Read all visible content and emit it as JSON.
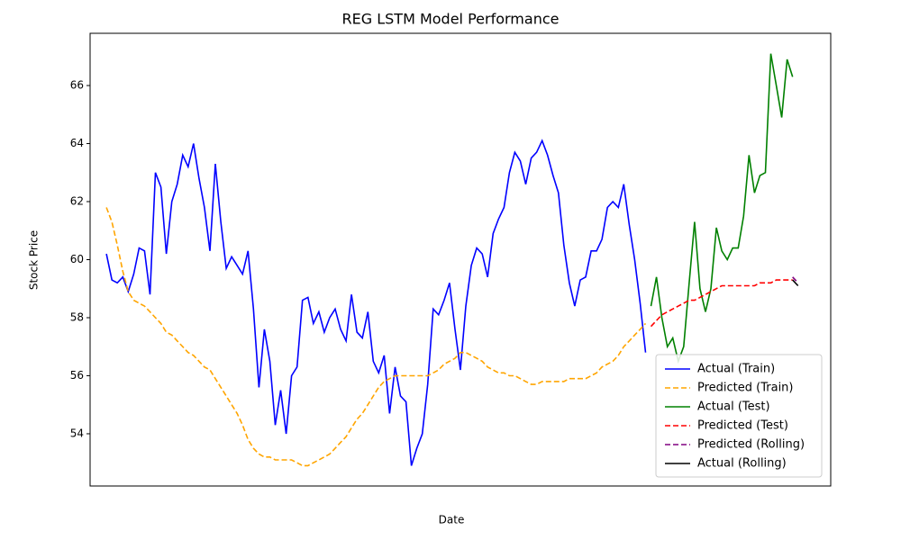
{
  "chart_data": {
    "type": "line",
    "title": "REG LSTM Model Performance",
    "x_label": "Date",
    "y_label": "Stock Price",
    "ylim": [
      52.2,
      67.8
    ],
    "yticks": [
      54,
      56,
      58,
      60,
      62,
      64,
      66
    ],
    "xlim": [
      -3,
      133
    ],
    "legend": "lower right",
    "grid": false,
    "series": [
      {
        "name": "Actual (Train)",
        "color": "#0000ff",
        "dash": false,
        "values": [
          60.2,
          59.3,
          59.2,
          59.4,
          58.9,
          59.5,
          60.4,
          60.3,
          58.8,
          63.0,
          62.5,
          60.2,
          62.0,
          62.6,
          63.6,
          63.2,
          64.0,
          62.8,
          61.8,
          60.3,
          63.3,
          61.3,
          59.7,
          60.1,
          59.8,
          59.5,
          60.3,
          58.3,
          55.6,
          57.6,
          56.5,
          54.3,
          55.5,
          54.0,
          56.0,
          56.3,
          58.6,
          58.7,
          57.8,
          58.2,
          57.5,
          58.0,
          58.3,
          57.6,
          57.2,
          58.8,
          57.5,
          57.3,
          58.2,
          56.5,
          56.1,
          56.7,
          54.7,
          56.3,
          55.3,
          55.1,
          52.9,
          53.5,
          54.0,
          55.7,
          58.3,
          58.1,
          58.6,
          59.2,
          57.6,
          56.2,
          58.4,
          59.8,
          60.4,
          60.2,
          59.4,
          60.9,
          61.4,
          61.8,
          63.0,
          63.7,
          63.4,
          62.6,
          63.5,
          63.7,
          64.1,
          63.6,
          62.9,
          62.3,
          60.5,
          59.2,
          58.4,
          59.3,
          59.4,
          60.3,
          60.3,
          60.7,
          61.8,
          62.0,
          61.8,
          62.6,
          61.2,
          60.0,
          58.5,
          56.8,
          null,
          null,
          null,
          null,
          null,
          null,
          null,
          null,
          null,
          null,
          null,
          null,
          null,
          null,
          null,
          null,
          null,
          null,
          null,
          null,
          null,
          null,
          null,
          null,
          null,
          null,
          null,
          null
        ]
      },
      {
        "name": "Predicted (Train)",
        "color": "#ffa500",
        "dash": true,
        "values": [
          61.8,
          61.3,
          60.5,
          59.6,
          58.9,
          58.6,
          58.5,
          58.4,
          58.2,
          58.0,
          57.8,
          57.5,
          57.4,
          57.2,
          57.0,
          56.8,
          56.7,
          56.5,
          56.3,
          56.2,
          55.9,
          55.6,
          55.3,
          55.0,
          54.7,
          54.3,
          53.8,
          53.5,
          53.3,
          53.2,
          53.2,
          53.1,
          53.1,
          53.1,
          53.1,
          53.0,
          52.9,
          52.9,
          53.0,
          53.1,
          53.2,
          53.3,
          53.5,
          53.7,
          53.9,
          54.2,
          54.5,
          54.7,
          55.0,
          55.3,
          55.6,
          55.8,
          55.9,
          56.0,
          56.0,
          56.0,
          56.0,
          56.0,
          56.0,
          56.0,
          56.1,
          56.2,
          56.4,
          56.5,
          56.6,
          56.8,
          56.8,
          56.7,
          56.6,
          56.5,
          56.3,
          56.2,
          56.1,
          56.1,
          56.0,
          56.0,
          55.9,
          55.8,
          55.7,
          55.7,
          55.8,
          55.8,
          55.8,
          55.8,
          55.8,
          55.9,
          55.9,
          55.9,
          55.9,
          56.0,
          56.1,
          56.3,
          56.4,
          56.5,
          56.7,
          57.0,
          57.2,
          57.4,
          57.6,
          57.8,
          null,
          null,
          null,
          null,
          null,
          null,
          null,
          null,
          null,
          null,
          null,
          null,
          null,
          null,
          null,
          null,
          null,
          null,
          null,
          null,
          null,
          null,
          null,
          null,
          null,
          null,
          null,
          null
        ]
      },
      {
        "name": "Actual (Test)",
        "color": "#008000",
        "dash": false,
        "values": [
          null,
          null,
          null,
          null,
          null,
          null,
          null,
          null,
          null,
          null,
          null,
          null,
          null,
          null,
          null,
          null,
          null,
          null,
          null,
          null,
          null,
          null,
          null,
          null,
          null,
          null,
          null,
          null,
          null,
          null,
          null,
          null,
          null,
          null,
          null,
          null,
          null,
          null,
          null,
          null,
          null,
          null,
          null,
          null,
          null,
          null,
          null,
          null,
          null,
          null,
          null,
          null,
          null,
          null,
          null,
          null,
          null,
          null,
          null,
          null,
          null,
          null,
          null,
          null,
          null,
          null,
          null,
          null,
          null,
          null,
          null,
          null,
          null,
          null,
          null,
          null,
          null,
          null,
          null,
          null,
          null,
          null,
          null,
          null,
          null,
          null,
          null,
          null,
          null,
          null,
          null,
          null,
          null,
          null,
          null,
          null,
          null,
          null,
          null,
          null,
          58.4,
          59.4,
          58.0,
          57.0,
          57.3,
          56.5,
          57.0,
          59.2,
          61.3,
          59.0,
          58.2,
          59.0,
          61.1,
          60.3,
          60.0,
          60.4,
          60.4,
          61.5,
          63.6,
          62.3,
          62.9,
          63.0,
          67.1,
          66.0,
          64.9,
          66.9,
          66.3,
          null
        ]
      },
      {
        "name": "Predicted (Test)",
        "color": "#ff0000",
        "dash": true,
        "values": [
          null,
          null,
          null,
          null,
          null,
          null,
          null,
          null,
          null,
          null,
          null,
          null,
          null,
          null,
          null,
          null,
          null,
          null,
          null,
          null,
          null,
          null,
          null,
          null,
          null,
          null,
          null,
          null,
          null,
          null,
          null,
          null,
          null,
          null,
          null,
          null,
          null,
          null,
          null,
          null,
          null,
          null,
          null,
          null,
          null,
          null,
          null,
          null,
          null,
          null,
          null,
          null,
          null,
          null,
          null,
          null,
          null,
          null,
          null,
          null,
          null,
          null,
          null,
          null,
          null,
          null,
          null,
          null,
          null,
          null,
          null,
          null,
          null,
          null,
          null,
          null,
          null,
          null,
          null,
          null,
          null,
          null,
          null,
          null,
          null,
          null,
          null,
          null,
          null,
          null,
          null,
          null,
          null,
          null,
          null,
          null,
          null,
          null,
          null,
          null,
          57.7,
          57.9,
          58.1,
          58.2,
          58.3,
          58.4,
          58.5,
          58.6,
          58.6,
          58.7,
          58.8,
          58.9,
          59.0,
          59.1,
          59.1,
          59.1,
          59.1,
          59.1,
          59.1,
          59.1,
          59.2,
          59.2,
          59.2,
          59.3,
          59.3,
          59.3,
          59.3,
          null
        ]
      },
      {
        "name": "Predicted (Rolling)",
        "color": "#800080",
        "dash": true,
        "values": [
          null,
          null,
          null,
          null,
          null,
          null,
          null,
          null,
          null,
          null,
          null,
          null,
          null,
          null,
          null,
          null,
          null,
          null,
          null,
          null,
          null,
          null,
          null,
          null,
          null,
          null,
          null,
          null,
          null,
          null,
          null,
          null,
          null,
          null,
          null,
          null,
          null,
          null,
          null,
          null,
          null,
          null,
          null,
          null,
          null,
          null,
          null,
          null,
          null,
          null,
          null,
          null,
          null,
          null,
          null,
          null,
          null,
          null,
          null,
          null,
          null,
          null,
          null,
          null,
          null,
          null,
          null,
          null,
          null,
          null,
          null,
          null,
          null,
          null,
          null,
          null,
          null,
          null,
          null,
          null,
          null,
          null,
          null,
          null,
          null,
          null,
          null,
          null,
          null,
          null,
          null,
          null,
          null,
          null,
          null,
          null,
          null,
          null,
          null,
          null,
          null,
          null,
          null,
          null,
          null,
          null,
          null,
          null,
          null,
          null,
          null,
          null,
          null,
          null,
          null,
          null,
          null,
          null,
          null,
          null,
          null,
          null,
          null,
          null,
          null,
          null,
          59.4,
          59.2
        ]
      },
      {
        "name": "Actual (Rolling)",
        "color": "#000000",
        "dash": false,
        "values": [
          null,
          null,
          null,
          null,
          null,
          null,
          null,
          null,
          null,
          null,
          null,
          null,
          null,
          null,
          null,
          null,
          null,
          null,
          null,
          null,
          null,
          null,
          null,
          null,
          null,
          null,
          null,
          null,
          null,
          null,
          null,
          null,
          null,
          null,
          null,
          null,
          null,
          null,
          null,
          null,
          null,
          null,
          null,
          null,
          null,
          null,
          null,
          null,
          null,
          null,
          null,
          null,
          null,
          null,
          null,
          null,
          null,
          null,
          null,
          null,
          null,
          null,
          null,
          null,
          null,
          null,
          null,
          null,
          null,
          null,
          null,
          null,
          null,
          null,
          null,
          null,
          null,
          null,
          null,
          null,
          null,
          null,
          null,
          null,
          null,
          null,
          null,
          null,
          null,
          null,
          null,
          null,
          null,
          null,
          null,
          null,
          null,
          null,
          null,
          null,
          null,
          null,
          null,
          null,
          null,
          null,
          null,
          null,
          null,
          null,
          null,
          null,
          null,
          null,
          null,
          null,
          null,
          null,
          null,
          null,
          null,
          null,
          null,
          null,
          null,
          null,
          59.3,
          59.1
        ]
      }
    ]
  }
}
